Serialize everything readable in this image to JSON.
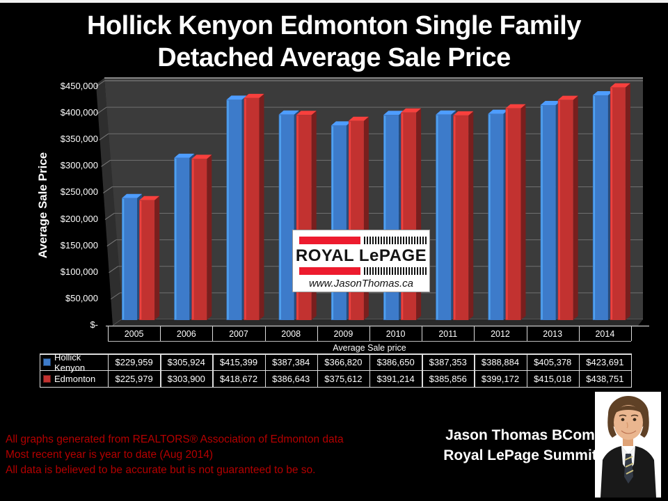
{
  "page_title": {
    "line1": "Hollick Kenyon Edmonton Single Family",
    "line2": "Detached Average Sale Price"
  },
  "chart_data": {
    "type": "bar",
    "style": "3d-column",
    "title": "Hollick Kenyon Edmonton Single Family Detached Average Sale Price",
    "ylabel": "Average Sale Price",
    "xlabel": "Average Sale price",
    "categories": [
      "2005",
      "2006",
      "2007",
      "2008",
      "2009",
      "2010",
      "2011",
      "2012",
      "2013",
      "2014"
    ],
    "series": [
      {
        "name": "Hollick Kenyon",
        "color": "#3d7bca",
        "values": [
          229959,
          305924,
          415399,
          387384,
          366820,
          386650,
          387353,
          388884,
          405378,
          423691
        ],
        "values_formatted": [
          "$229,959",
          "$305,924",
          "$415,399",
          "$387,384",
          "$366,820",
          "$386,650",
          "$387,353",
          "$388,884",
          "$405,378",
          "$423,691"
        ]
      },
      {
        "name": "Edmonton",
        "color": "#c23230",
        "values": [
          225979,
          303900,
          418672,
          386643,
          375612,
          391214,
          385856,
          399172,
          415018,
          438751
        ],
        "values_formatted": [
          "$225,979",
          "$303,900",
          "$418,672",
          "$386,643",
          "$375,612",
          "$391,214",
          "$385,856",
          "$399,172",
          "$415,018",
          "$438,751"
        ]
      }
    ],
    "ylim": [
      0,
      450000
    ],
    "ytick_step": 50000,
    "ytick_labels_top_down": [
      "$450,000",
      "$400,000",
      "$350,000",
      "$300,000",
      "$250,000",
      "$200,000",
      "$150,000",
      "$100,000",
      "$50,000",
      "$-"
    ],
    "grid": true,
    "legend_position": "data-table-left"
  },
  "logo": {
    "brand": "ROYAL LePAGE",
    "website": "www.JasonThomas.ca"
  },
  "footer": {
    "disclaimer_lines": [
      "All graphs generated from REALTORS® Association of Edmonton data",
      "Most recent year is year to date (Aug 2014)",
      "All data is believed to be accurate but is not guaranteed to be so."
    ],
    "agent_line1": "Jason Thomas BCom",
    "agent_line2": "Royal LePage Summit"
  },
  "colors": {
    "background": "#000000",
    "wall": "#3b3b3b",
    "wall_side": "#2e2e2e",
    "floor": "#2a2a2a",
    "gridline": "#707070",
    "table_border": "#dedede",
    "series1": "#3d7bca",
    "series2": "#c23230",
    "disclaimer_text": "#b40000"
  }
}
